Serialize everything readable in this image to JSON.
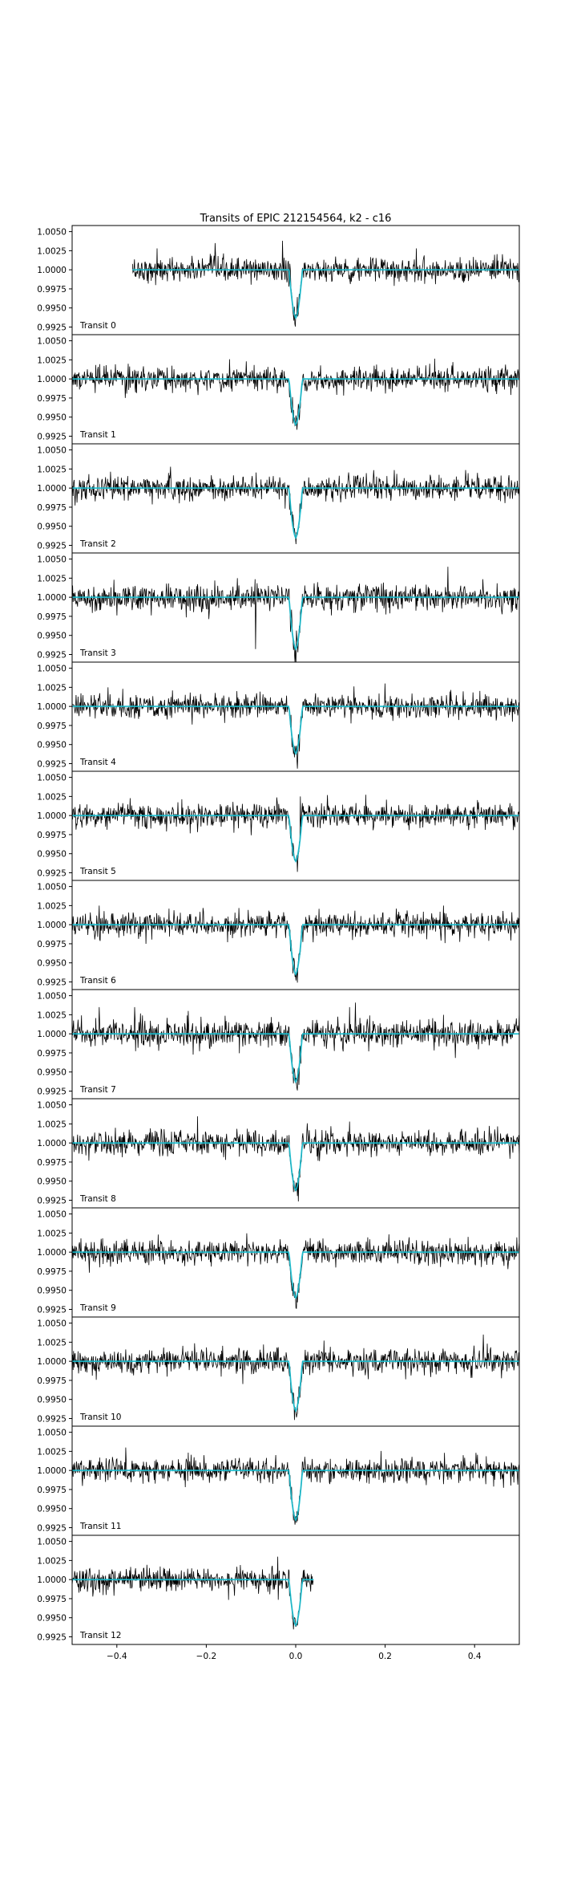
{
  "colors": {
    "data": "#000000",
    "model": "#17becf",
    "axes": "#000000",
    "background": "#ffffff"
  },
  "chart_data": {
    "type": "line",
    "title": "Transits of EPIC 212154564, k2 - c16",
    "xlabel": "",
    "ylabel": "",
    "xlim": [
      -0.5,
      0.5
    ],
    "ylim": [
      0.9915,
      1.0058
    ],
    "x_ticks": [
      -0.4,
      -0.2,
      0.0,
      0.2,
      0.4
    ],
    "x_tick_labels": [
      "−0.4",
      "−0.2",
      "0.0",
      "0.2",
      "0.4"
    ],
    "y_ticks": [
      0.9925,
      0.995,
      0.9975,
      1.0,
      1.0025,
      1.005
    ],
    "y_tick_labels": [
      "0.9925",
      "0.9950",
      "0.9975",
      "1.0000",
      "1.0025",
      "1.0050"
    ],
    "legend": "none",
    "grid": false,
    "model": {
      "baseline": 1.0,
      "depth_minimum": 0.9942,
      "transit_center": 0.0,
      "transit_duration": 0.03,
      "color": "#17becf"
    },
    "panels": [
      {
        "label": "Transit 0",
        "x_range": [
          -0.365,
          0.5
        ],
        "noise_sd": 0.0008,
        "min": 0.9937,
        "outliers": [
          [
            -0.31,
            1.0028
          ],
          [
            -0.18,
            1.0035
          ],
          [
            -0.03,
            1.0038
          ],
          [
            0.27,
            1.0028
          ]
        ]
      },
      {
        "label": "Transit 1",
        "x_range": [
          -0.5,
          0.5
        ],
        "noise_sd": 0.0008,
        "min": 0.994,
        "outliers": []
      },
      {
        "label": "Transit 2",
        "x_range": [
          -0.5,
          0.5
        ],
        "noise_sd": 0.0008,
        "min": 0.9935,
        "outliers": [
          [
            -0.28,
            1.0028
          ]
        ]
      },
      {
        "label": "Transit 3",
        "x_range": [
          -0.5,
          0.5
        ],
        "noise_sd": 0.0009,
        "min": 0.9932,
        "outliers": [
          [
            -0.13,
            1.0025
          ],
          [
            -0.09,
            0.9932
          ],
          [
            0.34,
            1.004
          ]
        ]
      },
      {
        "label": "Transit 4",
        "x_range": [
          -0.5,
          0.5
        ],
        "noise_sd": 0.0008,
        "min": 0.9938,
        "outliers": [
          [
            -0.42,
            1.0025
          ],
          [
            0.2,
            1.003
          ]
        ]
      },
      {
        "label": "Transit 5",
        "x_range": [
          -0.5,
          0.5
        ],
        "noise_sd": 0.0008,
        "min": 0.994,
        "outliers": [
          [
            0.01,
            1.0025
          ]
        ]
      },
      {
        "label": "Transit 6",
        "x_range": [
          -0.5,
          0.5
        ],
        "noise_sd": 0.0008,
        "min": 0.9935,
        "outliers": [
          [
            -0.44,
            1.0025
          ],
          [
            0.33,
            1.0025
          ]
        ]
      },
      {
        "label": "Transit 7",
        "x_range": [
          -0.5,
          0.5
        ],
        "noise_sd": 0.0009,
        "min": 0.9937,
        "outliers": [
          [
            -0.44,
            1.0035
          ],
          [
            -0.36,
            1.0035
          ],
          [
            -0.24,
            1.003
          ],
          [
            0.12,
            1.0035
          ]
        ]
      },
      {
        "label": "Transit 8",
        "x_range": [
          -0.5,
          0.5
        ],
        "noise_sd": 0.0008,
        "min": 0.9938,
        "outliers": [
          [
            -0.22,
            1.0035
          ],
          [
            0.12,
            1.0028
          ]
        ]
      },
      {
        "label": "Transit 9",
        "x_range": [
          -0.5,
          0.5
        ],
        "noise_sd": 0.0008,
        "min": 0.994,
        "outliers": []
      },
      {
        "label": "Transit 10",
        "x_range": [
          -0.5,
          0.5
        ],
        "noise_sd": 0.0008,
        "min": 0.9935,
        "outliers": [
          [
            0.42,
            1.0035
          ]
        ]
      },
      {
        "label": "Transit 11",
        "x_range": [
          -0.5,
          0.5
        ],
        "noise_sd": 0.0008,
        "min": 0.9935,
        "outliers": [
          [
            -0.38,
            1.003
          ]
        ]
      },
      {
        "label": "Transit 12",
        "x_range": [
          -0.5,
          0.04
        ],
        "noise_sd": 0.0008,
        "min": 0.994,
        "outliers": [
          [
            -0.04,
            1.003
          ]
        ]
      }
    ]
  }
}
